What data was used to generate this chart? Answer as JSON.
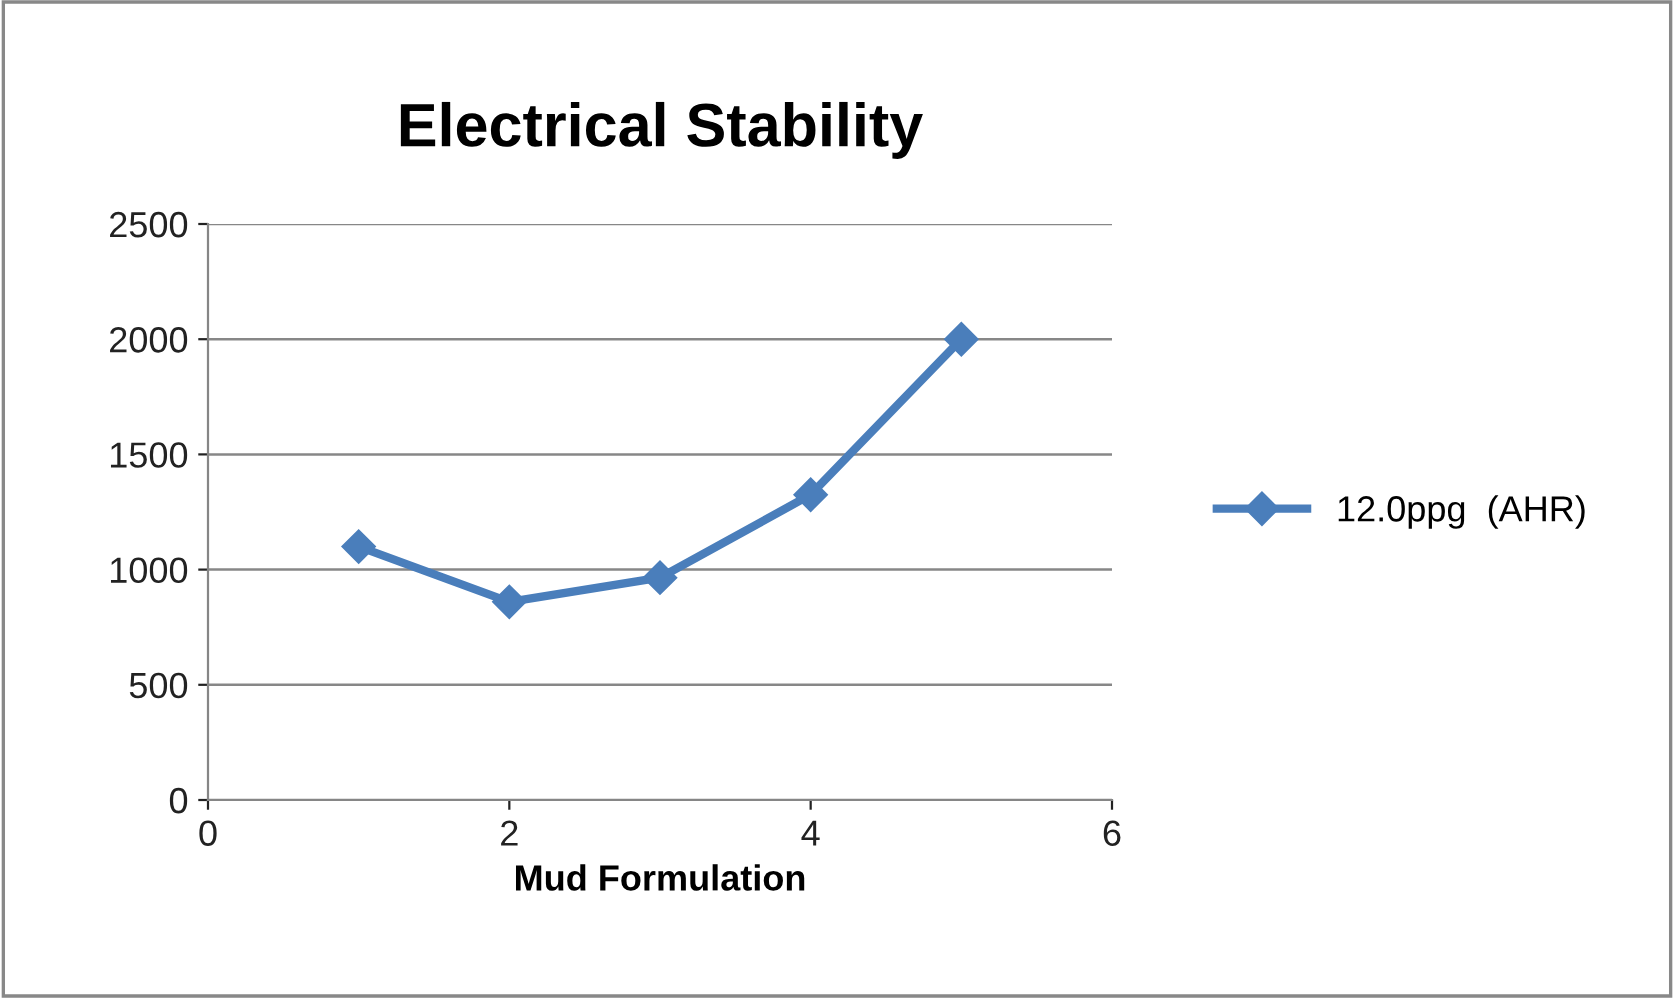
{
  "chart_data": {
    "type": "line",
    "title": "Electrical Stability",
    "xlabel": "Mud Formulation",
    "x": [
      1,
      2,
      3,
      4,
      5
    ],
    "series": [
      {
        "name": "12.0ppg  (AHR)",
        "color": "#4a7ebb",
        "values": [
          1100,
          860,
          965,
          1325,
          2000
        ]
      }
    ],
    "xlim": [
      0,
      6
    ],
    "xticks": [
      0,
      2,
      4,
      6
    ],
    "ylim": [
      0,
      2500
    ],
    "yticks": [
      0,
      500,
      1000,
      1500,
      2000,
      2500
    ],
    "grid": "y",
    "legend": "right",
    "marker": "diamond",
    "line_style": "solid"
  }
}
